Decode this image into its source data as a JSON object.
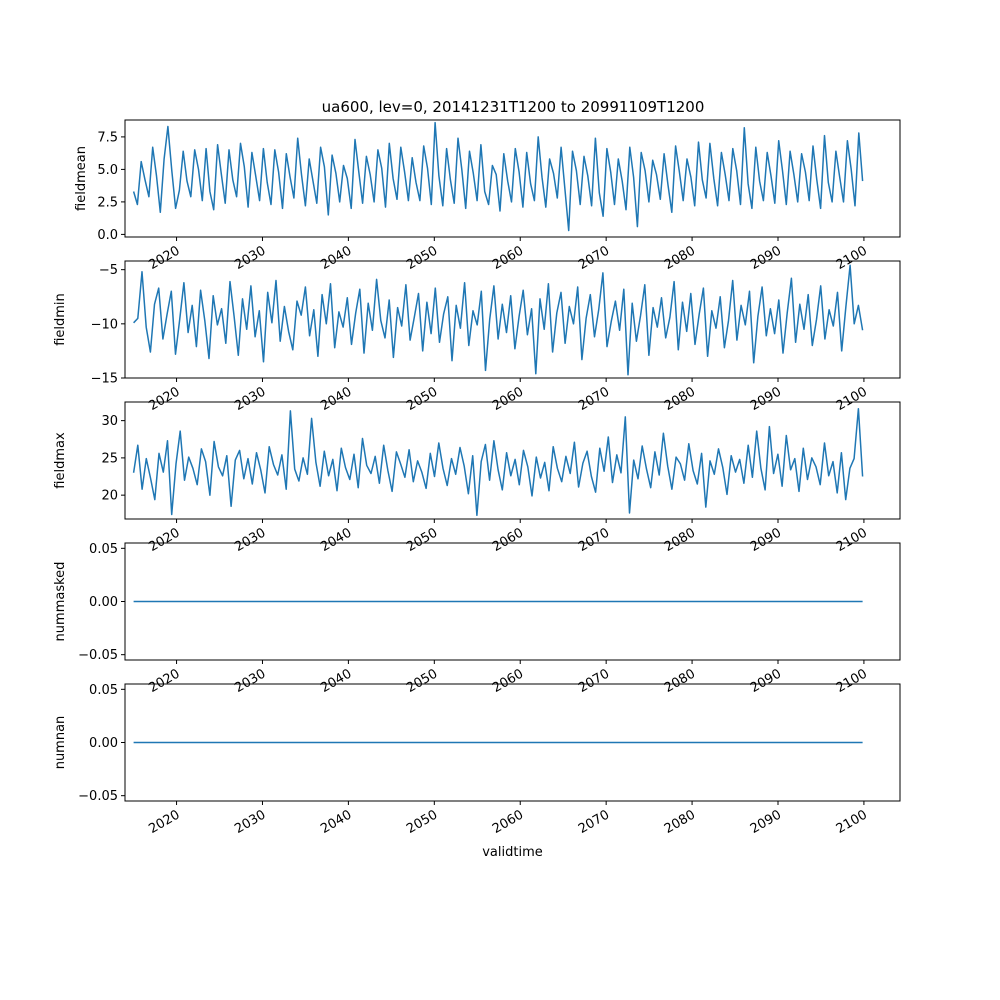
{
  "figure": {
    "title": "ua600, lev=0, 20141231T1200 to 20991109T1200"
  },
  "colors": {
    "line": "#1f77b4",
    "axes": "#000000",
    "background": "#ffffff"
  },
  "chart_data": [
    {
      "type": "line",
      "ylabel": "fieldmean",
      "xlim": [
        2014.0,
        2104.2
      ],
      "ylim": [
        -0.2,
        8.8
      ],
      "yticks": [
        0.0,
        2.5,
        5.0,
        7.5
      ],
      "ytick_labels": [
        "0.0",
        "2.5",
        "5.0",
        "7.5"
      ],
      "xticks": [
        2020,
        2030,
        2040,
        2050,
        2060,
        2070,
        2080,
        2090,
        2100
      ],
      "xtick_labels": [
        "2020",
        "2030",
        "2040",
        "2050",
        "2060",
        "2070",
        "2080",
        "2090",
        "2100"
      ],
      "x_start": 2015.0,
      "x_end": 2099.85,
      "series": [
        {
          "values": [
            3.3,
            2.3,
            5.6,
            4.2,
            2.9,
            6.7,
            4.5,
            1.7,
            5.8,
            8.3,
            4.9,
            2.0,
            3.4,
            6.4,
            4.1,
            2.9,
            6.5,
            5.0,
            2.6,
            6.6,
            3.3,
            1.9,
            6.9,
            4.6,
            2.4,
            6.5,
            4.2,
            2.9,
            7.0,
            5.2,
            2.1,
            6.3,
            4.5,
            2.6,
            6.6,
            4.0,
            2.3,
            6.5,
            4.8,
            2.0,
            6.2,
            4.4,
            2.8,
            7.4,
            4.6,
            2.2,
            5.8,
            4.1,
            2.4,
            6.7,
            5.2,
            1.5,
            6.1,
            4.7,
            2.5,
            5.3,
            4.3,
            2.0,
            7.3,
            4.8,
            2.4,
            6.0,
            4.6,
            2.5,
            6.5,
            5.1,
            2.1,
            7.0,
            4.3,
            2.7,
            6.7,
            4.8,
            2.6,
            5.9,
            4.0,
            2.6,
            6.8,
            5.1,
            2.3,
            8.6,
            4.5,
            2.2,
            6.6,
            4.2,
            2.4,
            7.4,
            5.0,
            2.0,
            6.4,
            4.7,
            2.6,
            6.9,
            3.3,
            2.3,
            5.3,
            4.6,
            1.8,
            6.2,
            4.1,
            2.5,
            6.6,
            4.8,
            2.1,
            6.3,
            3.9,
            2.6,
            7.5,
            4.4,
            2.1,
            5.8,
            4.7,
            2.8,
            6.7,
            3.5,
            0.3,
            6.4,
            4.9,
            2.3,
            6.0,
            4.5,
            2.2,
            7.4,
            3.2,
            1.4,
            6.6,
            4.8,
            2.3,
            5.8,
            4.1,
            1.9,
            6.7,
            4.4,
            0.6,
            6.3,
            4.9,
            2.5,
            5.7,
            4.6,
            2.7,
            6.2,
            3.8,
            1.7,
            6.8,
            4.8,
            2.6,
            5.8,
            4.4,
            2.2,
            7.1,
            4.2,
            2.8,
            7.0,
            4.3,
            2.2,
            6.3,
            4.6,
            2.6,
            6.6,
            4.9,
            2.3,
            8.2,
            3.9,
            2.0,
            6.7,
            4.1,
            2.6,
            6.3,
            4.5,
            2.4,
            7.2,
            4.9,
            2.3,
            6.4,
            4.6,
            2.5,
            6.2,
            4.8,
            2.6,
            6.8,
            4.2,
            2.0,
            7.6,
            4.0,
            2.5,
            6.4,
            4.4,
            2.5,
            7.2,
            5.0,
            2.2,
            7.8,
            4.1
          ],
          "approximate": true
        }
      ]
    },
    {
      "type": "line",
      "ylabel": "fieldmin",
      "xlim": [
        2014.0,
        2104.2
      ],
      "ylim": [
        -15.0,
        -4.2
      ],
      "yticks": [
        -15,
        -10,
        -5
      ],
      "ytick_labels": [
        "−15",
        "−10",
        "−5"
      ],
      "xticks": [
        2020,
        2030,
        2040,
        2050,
        2060,
        2070,
        2080,
        2090,
        2100
      ],
      "xtick_labels": [
        "2020",
        "2030",
        "2040",
        "2050",
        "2060",
        "2070",
        "2080",
        "2090",
        "2100"
      ],
      "x_start": 2015.0,
      "x_end": 2099.85,
      "series": [
        {
          "values": [
            -9.9,
            -9.5,
            -5.2,
            -10.3,
            -12.6,
            -8.2,
            -6.7,
            -11.4,
            -9.1,
            -7.0,
            -12.8,
            -9.6,
            -6.2,
            -10.8,
            -8.3,
            -12.1,
            -6.9,
            -9.7,
            -13.2,
            -7.4,
            -10.1,
            -8.6,
            -11.8,
            -6.1,
            -9.3,
            -12.9,
            -7.7,
            -10.5,
            -6.5,
            -11.2,
            -8.8,
            -13.5,
            -7.1,
            -9.9,
            -6.0,
            -11.6,
            -8.4,
            -10.7,
            -12.4,
            -7.9,
            -9.2,
            -6.6,
            -11.1,
            -8.7,
            -13.0,
            -7.3,
            -10.0,
            -6.3,
            -12.2,
            -8.9,
            -10.3,
            -7.6,
            -11.9,
            -9.0,
            -6.8,
            -12.7,
            -8.1,
            -10.6,
            -5.9,
            -9.7,
            -11.3,
            -7.8,
            -13.1,
            -8.5,
            -10.2,
            -6.4,
            -11.5,
            -9.4,
            -7.2,
            -12.5,
            -8.0,
            -10.9,
            -6.7,
            -11.7,
            -9.1,
            -7.5,
            -13.4,
            -8.3,
            -10.4,
            -6.2,
            -12.0,
            -8.8,
            -10.1,
            -7.0,
            -14.3,
            -9.6,
            -6.5,
            -11.4,
            -8.2,
            -10.8,
            -7.4,
            -12.3,
            -9.3,
            -6.9,
            -11.0,
            -8.6,
            -14.6,
            -7.7,
            -10.5,
            -6.3,
            -12.6,
            -9.0,
            -7.1,
            -11.8,
            -8.4,
            -10.0,
            -6.6,
            -13.3,
            -9.5,
            -7.3,
            -11.2,
            -8.7,
            -5.3,
            -12.1,
            -9.8,
            -7.9,
            -10.6,
            -6.8,
            -14.7,
            -8.1,
            -11.6,
            -9.2,
            -6.4,
            -12.9,
            -8.5,
            -10.3,
            -7.6,
            -11.3,
            -9.4,
            -6.1,
            -12.4,
            -8.0,
            -10.7,
            -7.2,
            -11.9,
            -9.1,
            -6.7,
            -13.0,
            -8.8,
            -10.4,
            -7.5,
            -12.2,
            -9.7,
            -6.0,
            -11.5,
            -8.3,
            -10.1,
            -7.0,
            -13.6,
            -9.3,
            -6.6,
            -11.1,
            -8.6,
            -10.9,
            -7.8,
            -12.7,
            -9.0,
            -5.8,
            -11.7,
            -8.2,
            -10.5,
            -7.3,
            -12.0,
            -9.6,
            -6.5,
            -11.4,
            -8.7,
            -10.2,
            -7.1,
            -12.5,
            -8.4,
            -4.6,
            -10.0,
            -8.3,
            -10.6
          ],
          "approximate": true
        }
      ]
    },
    {
      "type": "line",
      "ylabel": "fieldmax",
      "xlim": [
        2014.0,
        2104.2
      ],
      "ylim": [
        16.8,
        32.5
      ],
      "yticks": [
        20,
        25,
        30
      ],
      "ytick_labels": [
        "20",
        "25",
        "30"
      ],
      "xticks": [
        2020,
        2030,
        2040,
        2050,
        2060,
        2070,
        2080,
        2090,
        2100
      ],
      "xtick_labels": [
        "2020",
        "2030",
        "2040",
        "2050",
        "2060",
        "2070",
        "2080",
        "2090",
        "2100"
      ],
      "x_start": 2015.0,
      "x_end": 2099.85,
      "series": [
        {
          "values": [
            23.0,
            26.7,
            20.8,
            24.9,
            22.3,
            19.4,
            25.6,
            23.1,
            27.3,
            17.4,
            24.2,
            28.6,
            22.0,
            25.1,
            23.6,
            21.4,
            26.2,
            24.5,
            20.0,
            27.2,
            23.8,
            22.6,
            25.3,
            18.5,
            24.7,
            26.0,
            22.2,
            24.9,
            21.5,
            25.7,
            23.4,
            20.3,
            26.5,
            24.1,
            22.7,
            25.4,
            20.8,
            31.3,
            23.5,
            21.9,
            25.0,
            22.8,
            30.3,
            24.4,
            21.2,
            25.9,
            22.6,
            24.8,
            20.6,
            26.3,
            23.7,
            22.1,
            25.5,
            21.0,
            27.6,
            24.0,
            22.9,
            25.2,
            21.6,
            26.7,
            23.3,
            20.5,
            25.8,
            24.2,
            22.4,
            26.1,
            21.8,
            24.6,
            23.1,
            20.9,
            25.6,
            22.5,
            27.0,
            23.6,
            21.3,
            24.9,
            22.8,
            26.4,
            23.9,
            20.2,
            25.3,
            17.3,
            24.5,
            26.8,
            22.0,
            27.3,
            23.4,
            20.7,
            25.7,
            22.6,
            24.8,
            21.4,
            26.0,
            23.8,
            19.9,
            25.1,
            22.3,
            24.4,
            20.6,
            26.5,
            23.6,
            21.8,
            25.2,
            22.9,
            27.1,
            21.1,
            24.3,
            25.9,
            22.5,
            20.4,
            26.3,
            23.2,
            27.8,
            21.7,
            25.4,
            23.0,
            30.5,
            17.6,
            24.7,
            22.2,
            26.6,
            23.5,
            21.0,
            25.8,
            22.7,
            28.3,
            23.9,
            20.8,
            25.1,
            24.2,
            22.0,
            26.9,
            23.3,
            21.5,
            25.6,
            18.4,
            24.6,
            22.8,
            26.2,
            23.7,
            20.1,
            25.3,
            23.1,
            24.8,
            21.6,
            26.7,
            22.4,
            28.6,
            23.6,
            20.7,
            29.2,
            22.9,
            25.5,
            21.2,
            28.0,
            23.4,
            24.9,
            20.5,
            26.3,
            22.1,
            25.0,
            23.8,
            21.4,
            27.0,
            22.6,
            24.5,
            20.3,
            25.7,
            19.4,
            23.6,
            24.9,
            31.6,
            22.5
          ],
          "approximate": true
        }
      ]
    },
    {
      "type": "line",
      "ylabel": "nummasked",
      "xlim": [
        2014.0,
        2104.2
      ],
      "ylim": [
        -0.055,
        0.055
      ],
      "yticks": [
        -0.05,
        0.0,
        0.05
      ],
      "ytick_labels": [
        "−0.05",
        "0.00",
        "0.05"
      ],
      "xticks": [
        2020,
        2030,
        2040,
        2050,
        2060,
        2070,
        2080,
        2090,
        2100
      ],
      "xtick_labels": [
        "2020",
        "2030",
        "2040",
        "2050",
        "2060",
        "2070",
        "2080",
        "2090",
        "2100"
      ],
      "x_start": 2015.0,
      "x_end": 2099.85,
      "series": [
        {
          "values": [
            0.0,
            0.0
          ]
        }
      ]
    },
    {
      "type": "line",
      "ylabel": "numnan",
      "xlabel": "validtime",
      "xlim": [
        2014.0,
        2104.2
      ],
      "ylim": [
        -0.055,
        0.055
      ],
      "yticks": [
        -0.05,
        0.0,
        0.05
      ],
      "ytick_labels": [
        "−0.05",
        "0.00",
        "0.05"
      ],
      "xticks": [
        2020,
        2030,
        2040,
        2050,
        2060,
        2070,
        2080,
        2090,
        2100
      ],
      "xtick_labels": [
        "2020",
        "2030",
        "2040",
        "2050",
        "2060",
        "2070",
        "2080",
        "2090",
        "2100"
      ],
      "x_start": 2015.0,
      "x_end": 2099.85,
      "series": [
        {
          "values": [
            0.0,
            0.0
          ]
        }
      ]
    }
  ]
}
